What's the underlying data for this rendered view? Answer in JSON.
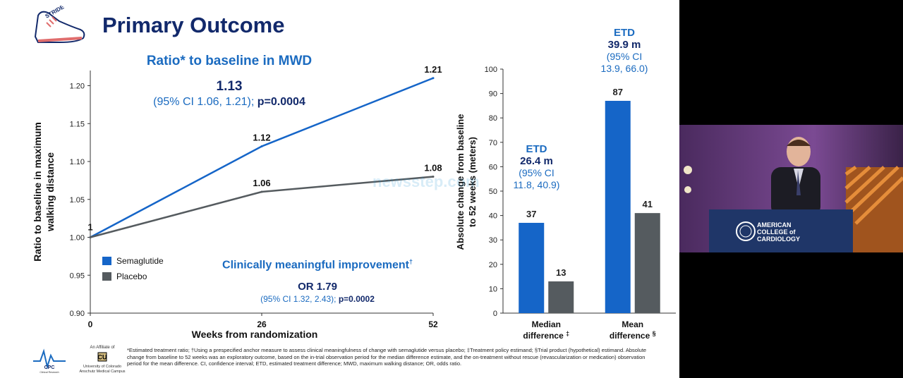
{
  "slide": {
    "title": "Primary Outcome",
    "logo_text": "STRIDE",
    "watermark": "newsstep.com",
    "line_panel": {
      "heading": "Ratio* to baseline in MWD",
      "estimate": "1.13",
      "ci": "(95% CI 1.06, 1.21); ",
      "p": "p=0.0004",
      "cmi_heading": "Clinically meaningful improvement",
      "cmi_mark": "†",
      "cmi_or": "OR 1.79",
      "cmi_ci": "(95% CI 1.32, 2.43); ",
      "cmi_p": "p=0.0002"
    },
    "bar_panel": {
      "etd_median": {
        "label": "ETD",
        "value": "26.4 m",
        "ci_line1": "(95% CI",
        "ci_line2": "11.8, 40.9)"
      },
      "etd_mean": {
        "label": "ETD",
        "value": "39.9 m",
        "ci_line1": "(95% CI",
        "ci_line2": "13.9, 66.0)"
      }
    },
    "footnote": "*Estimated treatment ratio; †Using a prespecified anchor measure to assess clinical meaningfulness of change with semaglutide versus placebo; ‡Treatment policy estimand; §Trial product (hypothetical) estimand. Absolute change from baseline to 52 weeks was an exploratory outcome, based on the in-trial observation period for the median difference estimate, and the on-treatment without rescue (revascularization or medication) observation period for the mean difference. CI, confidence interval; ETD, estimated treatment difference; MWD, maximum walking distance; OR, odds ratio.",
    "logos": {
      "cpc_text": "CPC",
      "cpc_sub": "Clinical Research",
      "affiliate_label": "An Affiliate of",
      "cu_name": "University of Colorado Anschutz Medical Campus"
    }
  },
  "video": {
    "sign_line1": "AMERICAN",
    "sign_line2": "COLLEGE of",
    "sign_line3": "CARDIOLOGY"
  },
  "colors": {
    "semaglutide": "#1565c8",
    "placebo": "#555b5f",
    "title": "#12296b",
    "accent": "#1b6bc0"
  },
  "chart_data": [
    {
      "type": "line",
      "xlabel": "Weeks from randomization",
      "ylabel": "Ratio to baseline in maximum walking distance",
      "x": [
        0,
        26,
        52
      ],
      "xticks": [
        "0",
        "26",
        "52"
      ],
      "ylim": [
        0.9,
        1.22
      ],
      "yticks": [
        "0.90",
        "0.95",
        "1.00",
        "1.05",
        "1.10",
        "1.15",
        "1.20"
      ],
      "series": [
        {
          "name": "Semaglutide",
          "values": [
            1.0,
            1.12,
            1.21
          ],
          "labels": [
            "1",
            "1.12",
            "1.21"
          ]
        },
        {
          "name": "Placebo",
          "values": [
            1.0,
            1.06,
            1.08
          ],
          "labels": [
            "",
            "1.06",
            "1.08"
          ]
        }
      ],
      "legend": "bottom-left"
    },
    {
      "type": "bar",
      "ylabel": "Absolute change from baseline to 52 weeks (meters)",
      "categories": [
        "Median difference",
        "Mean difference"
      ],
      "category_marks": [
        "‡",
        "§"
      ],
      "ylim": [
        0,
        100
      ],
      "yticks": [
        "0",
        "10",
        "20",
        "30",
        "40",
        "50",
        "60",
        "70",
        "80",
        "90",
        "100"
      ],
      "series": [
        {
          "name": "Semaglutide",
          "values": [
            37,
            87
          ]
        },
        {
          "name": "Placebo",
          "values": [
            13,
            41
          ]
        }
      ]
    }
  ]
}
